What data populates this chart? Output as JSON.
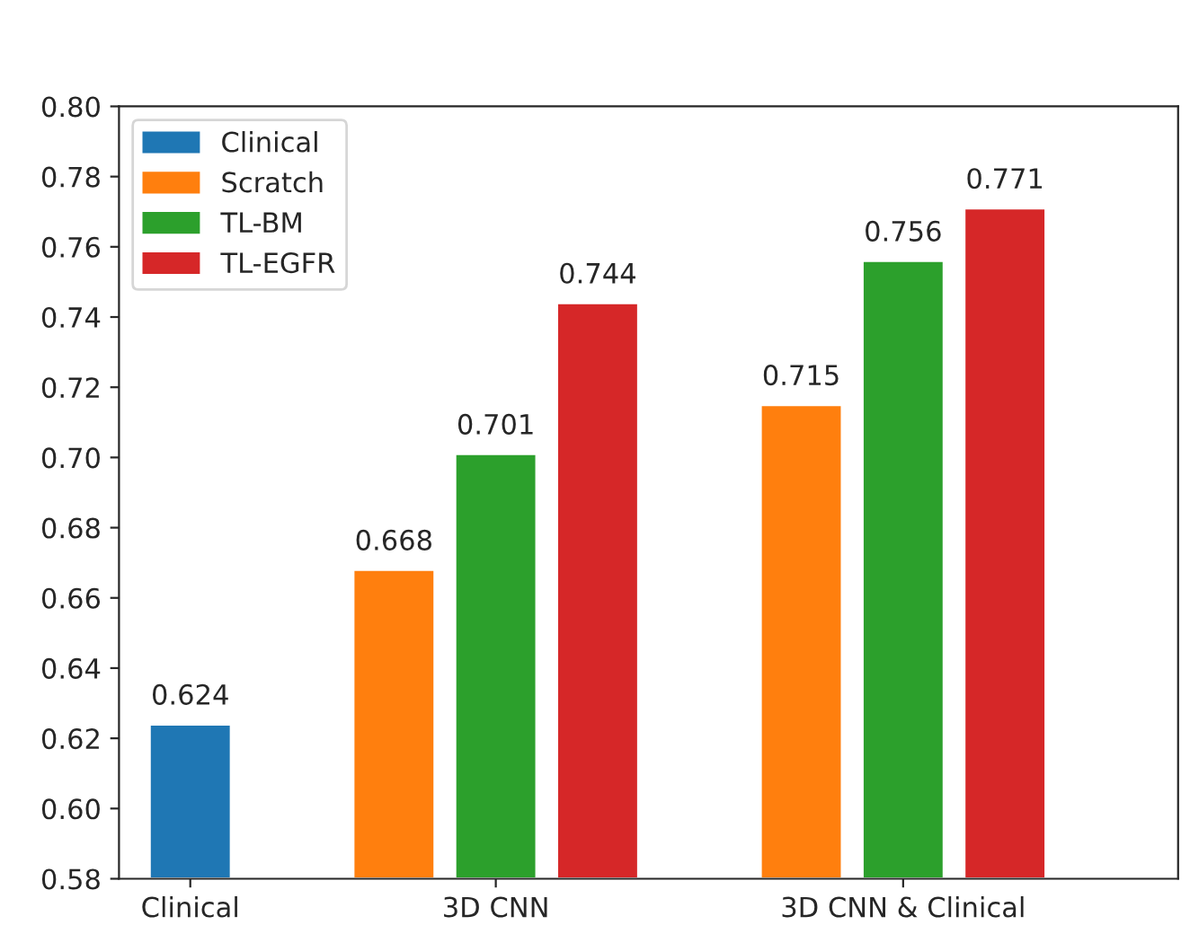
{
  "chart_data": {
    "type": "bar",
    "categories": [
      "Clinical",
      "3D CNN",
      "3D CNN & Clinical"
    ],
    "series": [
      {
        "name": "Clinical",
        "color": "#1f77b4",
        "values": [
          0.624,
          null,
          null
        ]
      },
      {
        "name": "Scratch",
        "color": "#ff7f0e",
        "values": [
          null,
          0.668,
          0.715
        ]
      },
      {
        "name": "TL-BM",
        "color": "#2ca02c",
        "values": [
          null,
          0.701,
          0.756
        ]
      },
      {
        "name": "TL-EGFR",
        "color": "#d62728",
        "values": [
          null,
          0.744,
          0.771
        ]
      }
    ],
    "ylim": [
      0.58,
      0.8
    ],
    "yticks": [
      {
        "value": 0.58,
        "label": "0.58"
      },
      {
        "value": 0.6,
        "label": "0.60"
      },
      {
        "value": 0.62,
        "label": "0.62"
      },
      {
        "value": 0.64,
        "label": "0.64"
      },
      {
        "value": 0.66,
        "label": "0.66"
      },
      {
        "value": 0.68,
        "label": "0.68"
      },
      {
        "value": 0.7,
        "label": "0.70"
      },
      {
        "value": 0.72,
        "label": "0.72"
      },
      {
        "value": 0.74,
        "label": "0.74"
      },
      {
        "value": 0.76,
        "label": "0.76"
      },
      {
        "value": 0.78,
        "label": "0.78"
      },
      {
        "value": 0.8,
        "label": "0.80"
      }
    ],
    "data_labels": true,
    "legend": "top left",
    "grid": false
  }
}
